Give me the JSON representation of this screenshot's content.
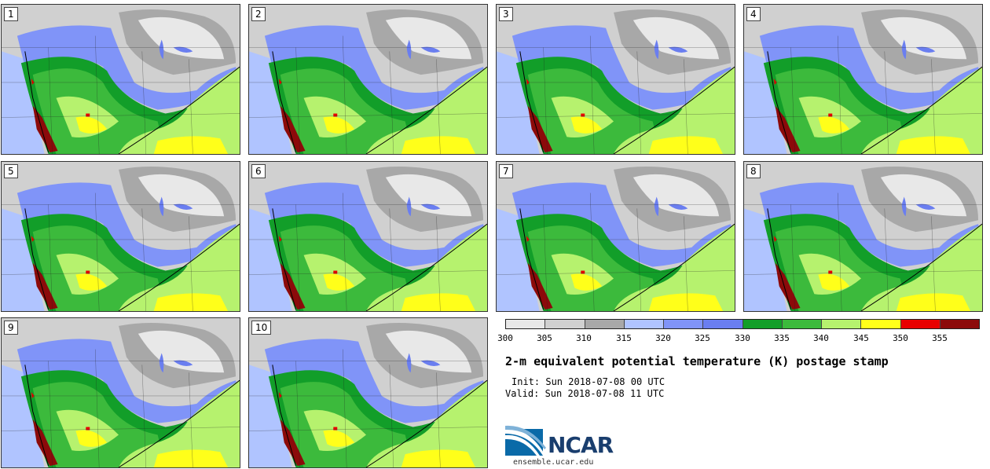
{
  "members": [
    {
      "label": "1"
    },
    {
      "label": "2"
    },
    {
      "label": "3"
    },
    {
      "label": "4"
    },
    {
      "label": "5"
    },
    {
      "label": "6"
    },
    {
      "label": "7"
    },
    {
      "label": "8"
    },
    {
      "label": "9"
    },
    {
      "label": "10"
    }
  ],
  "colorbar": {
    "ticks": [
      "300",
      "305",
      "310",
      "315",
      "320",
      "325",
      "330",
      "335",
      "340",
      "345",
      "350",
      "355"
    ],
    "colors": [
      "#e8e8e8",
      "#d0d0d0",
      "#a8a8a8",
      "#b0c4ff",
      "#8094f8",
      "#6a7ef0",
      "#129e29",
      "#3cba3c",
      "#b6f26e",
      "#ffff1a",
      "#e80000",
      "#8c0a0a"
    ]
  },
  "title": "2-m equivalent potential temperature (K) postage stamp",
  "init": "Init: Sun 2018-07-08 00 UTC",
  "valid": "Valid: Sun 2018-07-08 11 UTC",
  "logo": {
    "name": "NCAR",
    "url": "ensemble.ucar.edu"
  }
}
